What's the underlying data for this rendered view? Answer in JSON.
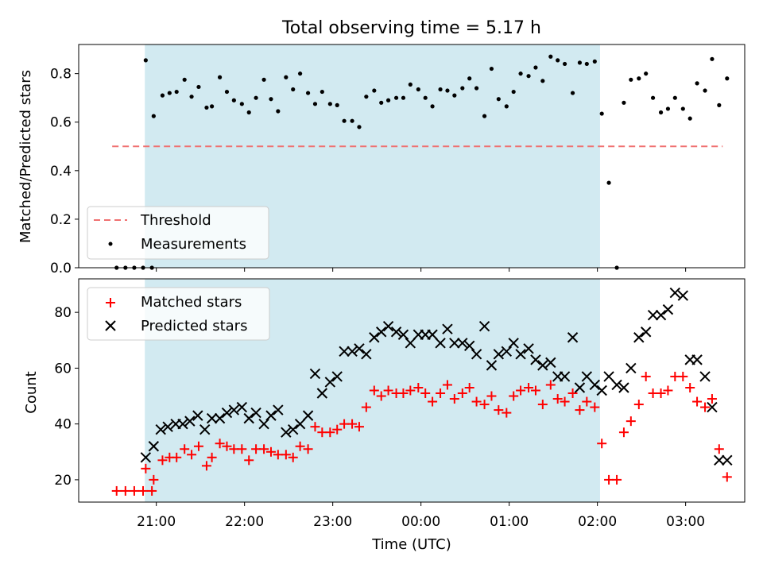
{
  "chart_data": [
    {
      "type": "scatter",
      "title": "Total observing time = 5.17 h",
      "ylabel": "Matched/Predicted stars",
      "ylim": [
        0,
        0.92
      ],
      "yticks": [
        0.0,
        0.2,
        0.4,
        0.6,
        0.8
      ],
      "xlim": [
        20.12,
        3.67
      ],
      "threshold": {
        "name": "Threshold",
        "value": 0.5,
        "x_start": 20.5,
        "x_end": 3.42,
        "color": "#f07070"
      },
      "shaded_span": {
        "x_start": 20.87,
        "x_end": 2.03,
        "color": "#add8e6"
      },
      "legend_position": "lower-left",
      "series": [
        {
          "name": "Measurements",
          "marker": "dot",
          "color": "#000000",
          "x": [
            20.55,
            20.65,
            20.75,
            20.85,
            20.95,
            20.88,
            20.97,
            21.07,
            21.15,
            21.23,
            21.32,
            21.4,
            21.48,
            21.57,
            21.63,
            21.72,
            21.8,
            21.88,
            21.97,
            22.05,
            22.13,
            22.22,
            22.3,
            22.38,
            22.47,
            22.55,
            22.63,
            22.72,
            22.8,
            22.88,
            22.97,
            23.05,
            23.13,
            23.22,
            23.3,
            23.38,
            23.47,
            23.55,
            23.63,
            23.72,
            23.8,
            23.88,
            23.97,
            0.05,
            0.13,
            0.22,
            0.3,
            0.38,
            0.47,
            0.55,
            0.63,
            0.72,
            0.8,
            0.88,
            0.97,
            1.05,
            1.13,
            1.22,
            1.3,
            1.38,
            1.47,
            1.55,
            1.63,
            1.72,
            1.8,
            1.88,
            1.97,
            2.05,
            2.13,
            2.22,
            2.3,
            2.38,
            2.47,
            2.55,
            2.63,
            2.72,
            2.8,
            2.88,
            2.97,
            3.05,
            3.13,
            3.22,
            3.3,
            3.38,
            3.47
          ],
          "y": [
            0,
            0,
            0,
            0,
            0,
            0.855,
            0.625,
            0.71,
            0.72,
            0.725,
            0.775,
            0.705,
            0.745,
            0.66,
            0.665,
            0.785,
            0.725,
            0.69,
            0.675,
            0.64,
            0.7,
            0.775,
            0.695,
            0.645,
            0.785,
            0.735,
            0.8,
            0.72,
            0.675,
            0.725,
            0.675,
            0.67,
            0.605,
            0.605,
            0.58,
            0.705,
            0.73,
            0.68,
            0.69,
            0.7,
            0.7,
            0.755,
            0.735,
            0.7,
            0.665,
            0.735,
            0.73,
            0.71,
            0.74,
            0.78,
            0.74,
            0.625,
            0.82,
            0.695,
            0.665,
            0.725,
            0.8,
            0.79,
            0.825,
            0.77,
            0.87,
            0.855,
            0.84,
            0.72,
            0.845,
            0.84,
            0.85,
            0.635,
            0.35,
            0.0,
            0.68,
            0.775,
            0.78,
            0.8,
            0.7,
            0.64,
            0.655,
            0.7,
            0.655,
            0.615,
            0.76,
            0.73,
            0.86,
            0.67,
            0.78
          ]
        }
      ]
    },
    {
      "type": "scatter",
      "xlabel": "Time (UTC)",
      "ylabel": "Count",
      "ylim": [
        12,
        92
      ],
      "yticks": [
        20,
        40,
        60,
        80
      ],
      "xlim": [
        20.12,
        3.67
      ],
      "xtick_labels": [
        "21:00",
        "22:00",
        "23:00",
        "00:00",
        "01:00",
        "02:00",
        "03:00"
      ],
      "shaded_span": {
        "x_start": 20.87,
        "x_end": 2.03,
        "color": "#add8e6"
      },
      "legend_position": "upper-left",
      "series": [
        {
          "name": "Matched stars",
          "marker": "plus",
          "color": "#ff0000",
          "x": [
            20.55,
            20.65,
            20.75,
            20.85,
            20.95,
            20.88,
            20.97,
            21.07,
            21.15,
            21.23,
            21.32,
            21.4,
            21.48,
            21.57,
            21.63,
            21.72,
            21.8,
            21.88,
            21.97,
            22.05,
            22.13,
            22.22,
            22.3,
            22.38,
            22.47,
            22.55,
            22.63,
            22.72,
            22.8,
            22.88,
            22.97,
            23.05,
            23.13,
            23.22,
            23.3,
            23.38,
            23.47,
            23.55,
            23.63,
            23.72,
            23.8,
            23.88,
            23.97,
            0.05,
            0.13,
            0.22,
            0.3,
            0.38,
            0.47,
            0.55,
            0.63,
            0.72,
            0.8,
            0.88,
            0.97,
            1.05,
            1.13,
            1.22,
            1.3,
            1.38,
            1.47,
            1.55,
            1.63,
            1.72,
            1.8,
            1.88,
            1.97,
            2.05,
            2.13,
            2.22,
            2.3,
            2.38,
            2.47,
            2.55,
            2.63,
            2.72,
            2.8,
            2.88,
            2.97,
            3.05,
            3.13,
            3.22,
            3.3,
            3.38,
            3.47
          ],
          "y": [
            16,
            16,
            16,
            16,
            16,
            24,
            20,
            27,
            28,
            28,
            31,
            29,
            32,
            25,
            28,
            33,
            32,
            31,
            31,
            27,
            31,
            31,
            30,
            29,
            29,
            28,
            32,
            31,
            39,
            37,
            37,
            38,
            40,
            40,
            39,
            46,
            52,
            50,
            52,
            51,
            51,
            52,
            53,
            51,
            48,
            51,
            54,
            49,
            51,
            53,
            48,
            47,
            50,
            45,
            44,
            50,
            52,
            53,
            52,
            47,
            54,
            49,
            48,
            51,
            45,
            48,
            46,
            33,
            20,
            20,
            37,
            41,
            47,
            57,
            51,
            51,
            52,
            57,
            57,
            53,
            48,
            46,
            49,
            31,
            21
          ]
        },
        {
          "name": "Predicted stars",
          "marker": "x",
          "color": "#000000",
          "x": [
            20.88,
            20.97,
            21.05,
            21.13,
            21.22,
            21.3,
            21.38,
            21.47,
            21.55,
            21.63,
            21.72,
            21.8,
            21.88,
            21.97,
            22.05,
            22.13,
            22.22,
            22.3,
            22.38,
            22.47,
            22.55,
            22.63,
            22.72,
            22.8,
            22.88,
            22.97,
            23.05,
            23.13,
            23.22,
            23.3,
            23.38,
            23.47,
            23.55,
            23.63,
            23.72,
            23.8,
            23.88,
            23.97,
            0.05,
            0.13,
            0.22,
            0.3,
            0.38,
            0.47,
            0.55,
            0.63,
            0.72,
            0.8,
            0.88,
            0.97,
            1.05,
            1.13,
            1.22,
            1.3,
            1.38,
            1.47,
            1.55,
            1.63,
            1.72,
            1.8,
            1.88,
            1.97,
            2.05,
            2.13,
            2.22,
            2.3,
            2.38,
            2.47,
            2.55,
            2.63,
            2.72,
            2.8,
            2.88,
            2.97,
            3.05,
            3.13,
            3.22,
            3.3,
            3.38,
            3.47
          ],
          "y": [
            28,
            32,
            38,
            39,
            40,
            40,
            41,
            43,
            38,
            42,
            42,
            44,
            45,
            46,
            42,
            44,
            40,
            43,
            45,
            37,
            38,
            40,
            43,
            58,
            51,
            55,
            57,
            66,
            66,
            67,
            65,
            71,
            73,
            75,
            73,
            72,
            69,
            72,
            72,
            72,
            69,
            74,
            69,
            69,
            68,
            65,
            75,
            61,
            65,
            66,
            69,
            65,
            67,
            63,
            61,
            62,
            57,
            57,
            71,
            53,
            57,
            54,
            52,
            57,
            54,
            53,
            60,
            71,
            73,
            79,
            79,
            81,
            87,
            86,
            63,
            63,
            57,
            46,
            27,
            27
          ]
        }
      ]
    }
  ]
}
